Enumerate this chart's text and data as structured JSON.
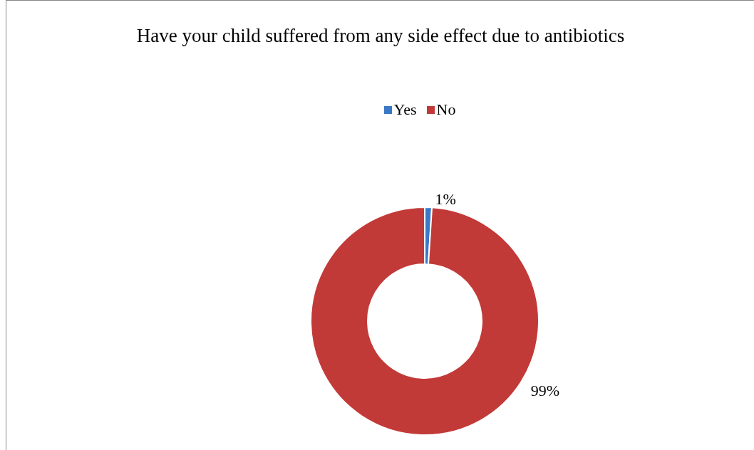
{
  "chart_data": {
    "type": "donut",
    "title": "Have your child suffered from any side effect due to antibiotics",
    "categories": [
      "Yes",
      "No"
    ],
    "values": [
      1,
      99
    ],
    "colors": [
      "#3b78c5",
      "#c23a38"
    ],
    "value_labels": [
      "1%",
      "99%"
    ],
    "legend": "top"
  }
}
